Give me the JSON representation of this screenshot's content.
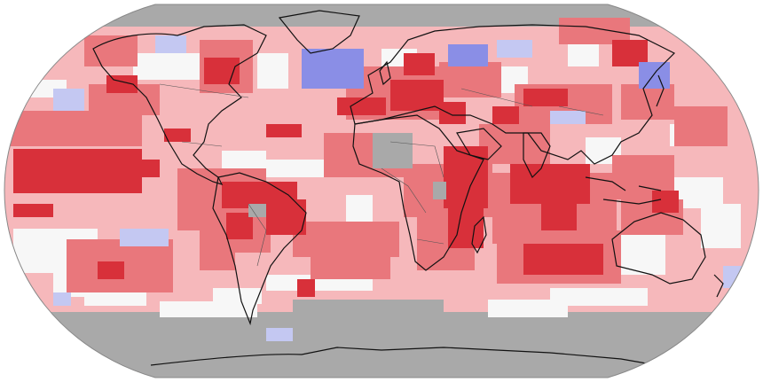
{
  "map": {
    "projection": "robinson",
    "colors": {
      "no_data": "#a9a9a9",
      "much_above": "#d8303a",
      "above": "#e9777c",
      "slightly_above": "#f6b8bb",
      "near_average": "#f7f7f7",
      "below": "#8a8ee6",
      "slightly_below": "#c4c8f2",
      "coastline": "#111111",
      "border": "#555555"
    }
  }
}
